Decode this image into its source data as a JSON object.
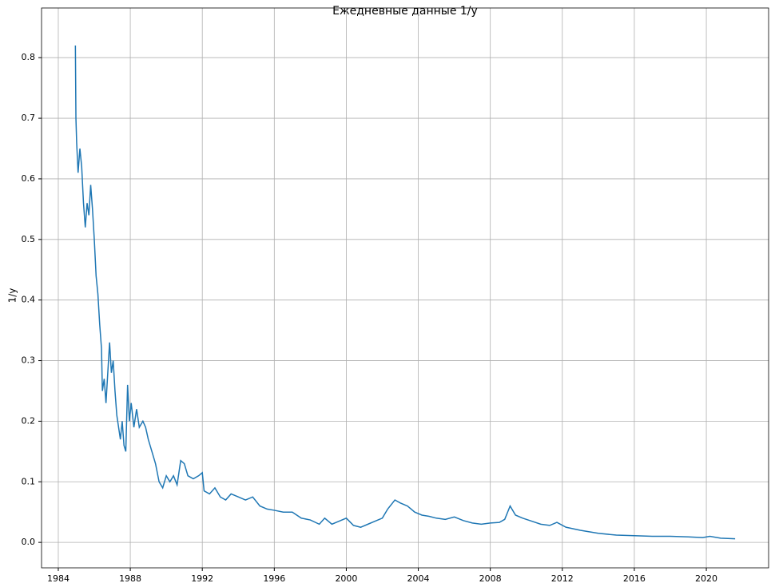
{
  "chart_data": {
    "type": "line",
    "title": "Ежедневные данные 1/y",
    "y_label": "1/y",
    "x": [
      1984.95,
      1984.98,
      1985.02,
      1985.1,
      1985.2,
      1985.3,
      1985.4,
      1985.5,
      1985.6,
      1985.7,
      1985.8,
      1985.9,
      1986.0,
      1986.1,
      1986.2,
      1986.3,
      1986.4,
      1986.45,
      1986.55,
      1986.65,
      1986.75,
      1986.85,
      1986.95,
      1987.05,
      1987.15,
      1987.25,
      1987.35,
      1987.45,
      1987.55,
      1987.65,
      1987.75,
      1987.85,
      1987.95,
      1988.05,
      1988.2,
      1988.35,
      1988.5,
      1988.7,
      1988.85,
      1989.0,
      1989.2,
      1989.4,
      1989.6,
      1989.8,
      1990.0,
      1990.2,
      1990.4,
      1990.6,
      1990.8,
      1991.0,
      1991.2,
      1991.5,
      1991.8,
      1992.0,
      1992.1,
      1992.4,
      1992.7,
      1993.0,
      1993.3,
      1993.6,
      1994.0,
      1994.4,
      1994.8,
      1995.2,
      1995.6,
      1996.0,
      1996.5,
      1997.0,
      1997.5,
      1998.0,
      1998.5,
      1998.8,
      1999.2,
      1999.6,
      2000.0,
      2000.4,
      2000.8,
      2001.2,
      2001.6,
      2002.0,
      2002.3,
      2002.7,
      2003.0,
      2003.4,
      2003.8,
      2004.2,
      2004.6,
      2005.0,
      2005.5,
      2006.0,
      2006.5,
      2007.0,
      2007.5,
      2008.0,
      2008.5,
      2008.8,
      2009.1,
      2009.4,
      2009.8,
      2010.3,
      2010.8,
      2011.3,
      2011.7,
      2012.2,
      2013,
      2014,
      2015,
      2016,
      2017,
      2018,
      2019,
      2019.8,
      2020.2,
      2020.8,
      2021.6
    ],
    "series": [
      {
        "color": "#1f77b4",
        "values": [
          0.82,
          0.7,
          0.66,
          0.61,
          0.65,
          0.62,
          0.56,
          0.52,
          0.56,
          0.54,
          0.59,
          0.55,
          0.5,
          0.44,
          0.41,
          0.36,
          0.32,
          0.25,
          0.27,
          0.23,
          0.28,
          0.33,
          0.28,
          0.3,
          0.25,
          0.21,
          0.19,
          0.17,
          0.2,
          0.16,
          0.15,
          0.26,
          0.2,
          0.23,
          0.19,
          0.22,
          0.19,
          0.2,
          0.19,
          0.17,
          0.15,
          0.13,
          0.1,
          0.09,
          0.11,
          0.1,
          0.11,
          0.095,
          0.135,
          0.13,
          0.11,
          0.105,
          0.11,
          0.115,
          0.085,
          0.08,
          0.09,
          0.075,
          0.07,
          0.08,
          0.075,
          0.07,
          0.075,
          0.06,
          0.055,
          0.053,
          0.05,
          0.05,
          0.04,
          0.037,
          0.03,
          0.04,
          0.03,
          0.035,
          0.04,
          0.028,
          0.025,
          0.03,
          0.035,
          0.04,
          0.055,
          0.07,
          0.065,
          0.06,
          0.05,
          0.045,
          0.043,
          0.04,
          0.038,
          0.042,
          0.036,
          0.032,
          0.03,
          0.032,
          0.033,
          0.038,
          0.06,
          0.045,
          0.04,
          0.035,
          0.03,
          0.028,
          0.033,
          0.025,
          0.02,
          0.015,
          0.012,
          0.011,
          0.01,
          0.01,
          0.009,
          0.008,
          0.01,
          0.007,
          0.006
        ]
      }
    ],
    "xlim": [
      1983.07,
      2023.46
    ],
    "xticks": [
      1984,
      1988,
      1992,
      1996,
      2000,
      2004,
      2008,
      2012,
      2016,
      2020
    ],
    "ylim": [
      -0.042,
      0.882
    ],
    "yticks": [
      {
        "value": 0,
        "label": "0.0"
      },
      0.1,
      0.2,
      0.3,
      0.4,
      0.5,
      0.6,
      0.7,
      0.8
    ],
    "grid": true
  }
}
